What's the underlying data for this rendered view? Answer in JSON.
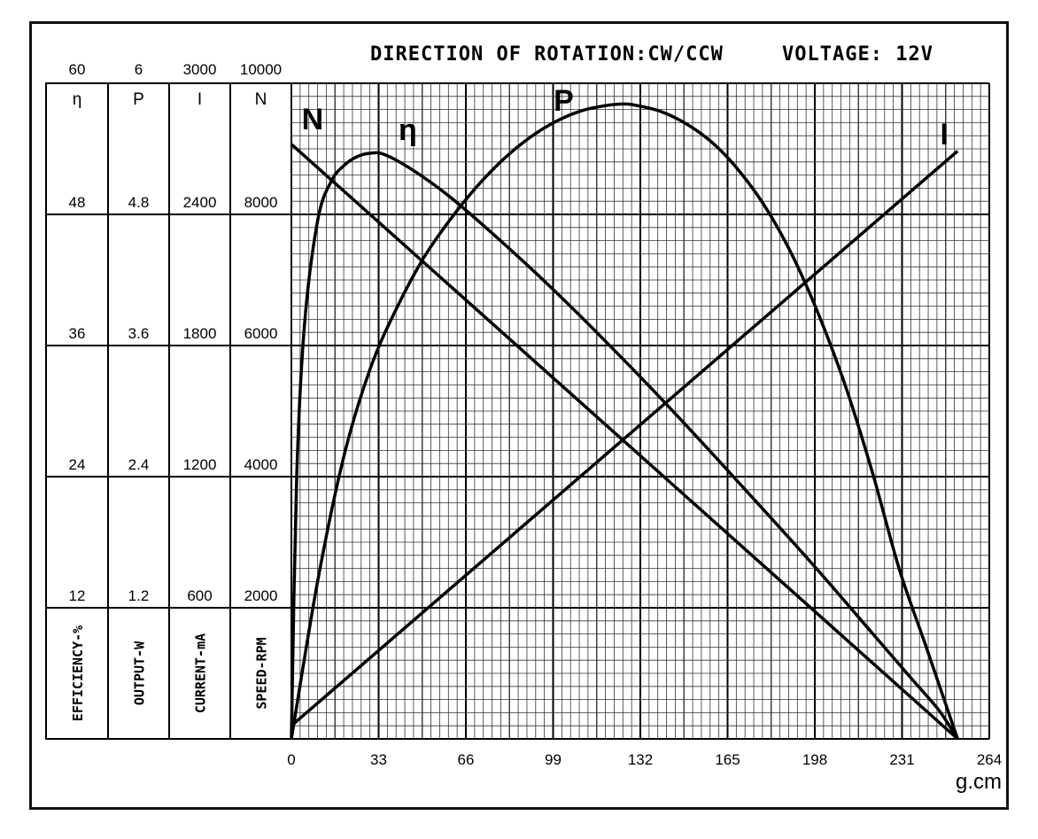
{
  "header": {
    "rotation": "DIRECTION OF ROTATION:CW/CCW",
    "voltage": "VOLTAGE: 12V"
  },
  "chart_data": {
    "type": "line",
    "title": "",
    "xlabel": "g.cm",
    "xlim": [
      0,
      264
    ],
    "x_ticks": [
      "0",
      "33",
      "66",
      "99",
      "132",
      "165",
      "198",
      "231",
      "264"
    ],
    "grid": true,
    "left_axes": [
      {
        "symbol": "η",
        "label": "EFFICIENCY-%",
        "ticks": [
          "60",
          "48",
          "36",
          "24",
          "12"
        ]
      },
      {
        "symbol": "P",
        "label": "OUTPUT-W",
        "ticks": [
          "6",
          "4.8",
          "3.6",
          "2.4",
          "1.2"
        ]
      },
      {
        "symbol": "I",
        "label": "CURRENT-mA",
        "ticks": [
          "3000",
          "2400",
          "1800",
          "1200",
          "600"
        ]
      },
      {
        "symbol": "N",
        "label": "SPEED-RPM",
        "ticks": [
          "10000",
          "8000",
          "6000",
          "4000",
          "2000"
        ]
      }
    ],
    "series": [
      {
        "name": "N",
        "axis": "N",
        "label_at": [
          8,
          9300
        ],
        "x": [
          0,
          252
        ],
        "y": [
          9070,
          0
        ]
      },
      {
        "name": "η",
        "axis": "η",
        "label_at": [
          44,
          54.8
        ],
        "x": [
          0,
          2,
          5,
          10,
          15,
          20,
          25,
          30,
          35,
          45,
          60,
          80,
          100,
          120,
          140,
          160,
          180,
          200,
          220,
          235,
          245,
          252
        ],
        "y": [
          0,
          24,
          38,
          47.5,
          51,
          52.5,
          53.3,
          53.6,
          53.5,
          52.2,
          49.6,
          45.4,
          40.9,
          36.1,
          31.1,
          25.9,
          20.6,
          15.2,
          9.6,
          5.4,
          2.6,
          0
        ]
      },
      {
        "name": "P",
        "axis": "P",
        "label_at": [
          103,
          5.75
        ],
        "x": [
          0,
          10,
          20,
          30,
          40,
          50,
          60,
          70,
          80,
          90,
          100,
          110,
          120,
          126,
          130,
          140,
          150,
          160,
          170,
          180,
          190,
          200,
          210,
          220,
          230,
          240,
          252
        ],
        "y": [
          0,
          1.45,
          2.6,
          3.4,
          3.95,
          4.4,
          4.75,
          5.05,
          5.3,
          5.5,
          5.65,
          5.75,
          5.8,
          5.81,
          5.8,
          5.74,
          5.62,
          5.44,
          5.18,
          4.84,
          4.4,
          3.85,
          3.2,
          2.42,
          1.55,
          0.85,
          0
        ]
      },
      {
        "name": "I",
        "axis": "I",
        "label_at": [
          247,
          2720
        ],
        "x": [
          0,
          252
        ],
        "y": [
          60,
          2690
        ]
      }
    ]
  }
}
